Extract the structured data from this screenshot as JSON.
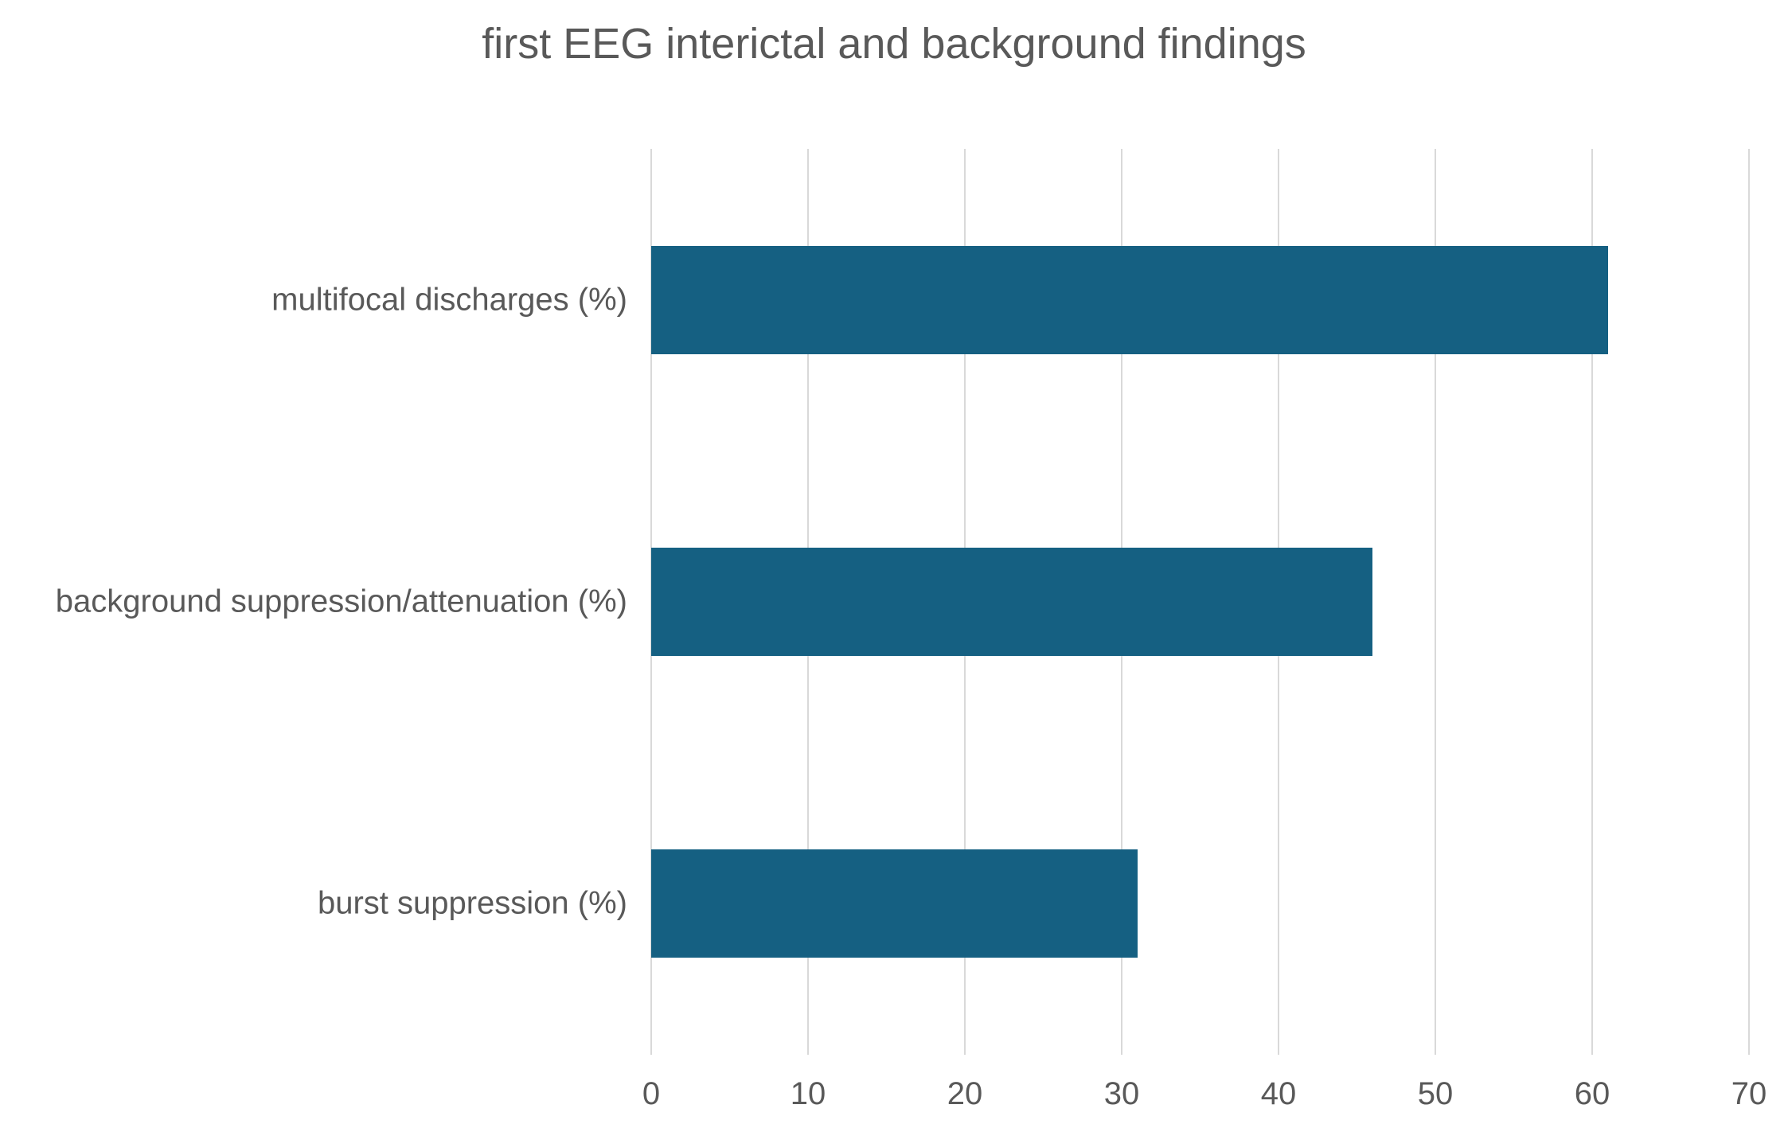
{
  "title": "first EEG interictal and background findings",
  "colors": {
    "bar": "#156082",
    "gridline": "#d9d9d9",
    "text": "#595959",
    "background": "#ffffff"
  },
  "chart_data": {
    "type": "bar",
    "orientation": "horizontal",
    "title": "first EEG interictal and background findings",
    "categories": [
      "multifocal discharges (%)",
      "background suppression/attenuation (%)",
      "burst suppression (%)"
    ],
    "values": [
      61,
      46,
      31
    ],
    "xlabel": "",
    "ylabel": "",
    "xlim": [
      0,
      70
    ],
    "xticks": [
      0,
      10,
      20,
      30,
      40,
      50,
      60,
      70
    ],
    "grid": true,
    "legend": false,
    "bar_color": "#156082"
  }
}
